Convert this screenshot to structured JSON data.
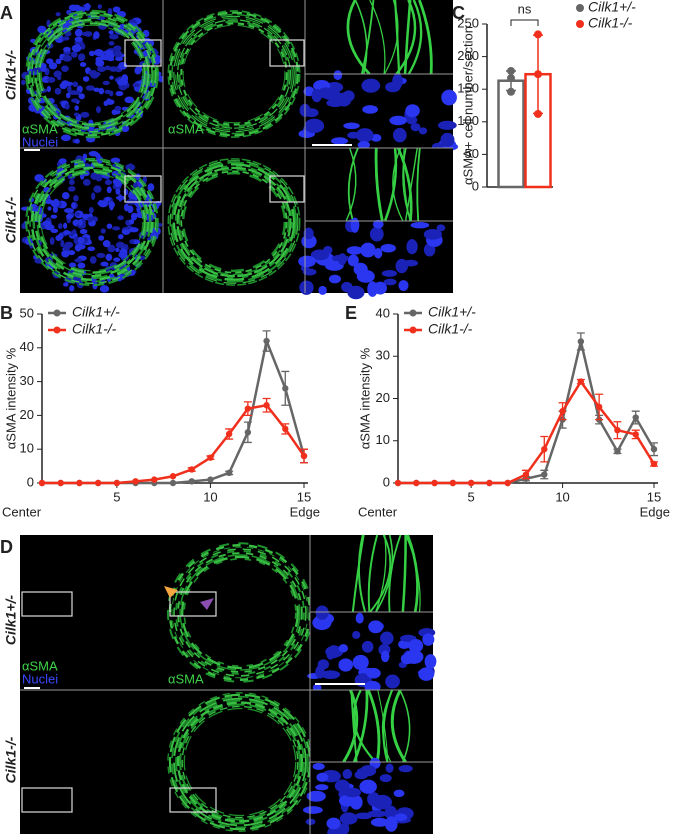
{
  "images": [
    {
      "panel": "A",
      "genotypes": [
        "Cilk1+/-",
        "Cilk1-/-"
      ],
      "channel_labels": [
        "αSMA",
        "Nuclei",
        "αSMA"
      ]
    },
    {
      "panel": "D",
      "genotypes": [
        "Cilk1+/-",
        "Cilk1-/-"
      ],
      "channel_labels": [
        "αSMA",
        "Nuclei",
        "αSMA"
      ]
    }
  ],
  "chart_data": [
    {
      "type": "bar",
      "panel": "C",
      "ylabel": "αSMA+ cell number/section",
      "categories": [
        null
      ],
      "ylim": [
        0,
        250
      ],
      "yticks": [
        0,
        50,
        100,
        150,
        200,
        250
      ],
      "annotation": "ns",
      "series": [
        {
          "name": "Cilk1+/-",
          "color": "#666666",
          "values": [
            163
          ],
          "errors": [
            15
          ],
          "points": [
            178,
            167,
            146
          ]
        },
        {
          "name": "Cilk1-/-",
          "color": "#f0301c",
          "values": [
            173
          ],
          "errors": [
            60
          ],
          "points": [
            234,
            173,
            112
          ]
        }
      ]
    },
    {
      "type": "line",
      "panel": "B",
      "ylabel": "αSMA intensity %",
      "x_end_labels": [
        "Center",
        "Edge"
      ],
      "x": [
        1,
        2,
        3,
        4,
        5,
        6,
        7,
        8,
        9,
        10,
        11,
        12,
        13,
        14,
        15
      ],
      "xlim": [
        1,
        15
      ],
      "xticks": [
        5,
        10,
        15
      ],
      "ylim": [
        0,
        50
      ],
      "yticks": [
        0,
        10,
        20,
        30,
        40,
        50
      ],
      "series": [
        {
          "name": "Cilk1+/-",
          "color": "#666666",
          "values": [
            0,
            0,
            0,
            0,
            0,
            0,
            0,
            0,
            0.5,
            1,
            3,
            15,
            42,
            28,
            8
          ],
          "errors": [
            0,
            0,
            0,
            0,
            0,
            0,
            0,
            0,
            0,
            0,
            0.5,
            3,
            3,
            5,
            2
          ]
        },
        {
          "name": "Cilk1-/-",
          "color": "#f0301c",
          "values": [
            0,
            0,
            0,
            0,
            0,
            0.5,
            1,
            2,
            4,
            7.5,
            14.5,
            22,
            23,
            16,
            8
          ],
          "errors": [
            0,
            0,
            0,
            0,
            0,
            0,
            0,
            0,
            0.5,
            0.5,
            1.5,
            2,
            2,
            1.5,
            2
          ]
        }
      ]
    },
    {
      "type": "line",
      "panel": "E",
      "ylabel": "αSMA intensity %",
      "x_end_labels": [
        "Center",
        "Edge"
      ],
      "x": [
        1,
        2,
        3,
        4,
        5,
        6,
        7,
        8,
        9,
        10,
        11,
        12,
        13,
        14,
        15
      ],
      "xlim": [
        1,
        15
      ],
      "xticks": [
        5,
        10,
        15
      ],
      "ylim": [
        0,
        40
      ],
      "yticks": [
        0,
        10,
        20,
        30,
        40
      ],
      "series": [
        {
          "name": "Cilk1+/-",
          "color": "#666666",
          "values": [
            0,
            0,
            0,
            0,
            0,
            0,
            0,
            1,
            2,
            15,
            33.5,
            15,
            7.5,
            15.5,
            8
          ],
          "errors": [
            0,
            0,
            0,
            0,
            0,
            0,
            0,
            0.5,
            1,
            2,
            2,
            1,
            0.5,
            1.5,
            1.5
          ]
        },
        {
          "name": "Cilk1-/-",
          "color": "#f0301c",
          "values": [
            0,
            0,
            0,
            0,
            0,
            0,
            0,
            2,
            8,
            17,
            24,
            18,
            12.5,
            11.5,
            4.5
          ],
          "errors": [
            0,
            0,
            0,
            0,
            0,
            0,
            0,
            1,
            3,
            2,
            0.5,
            3,
            2,
            1,
            0.5
          ]
        }
      ]
    }
  ]
}
